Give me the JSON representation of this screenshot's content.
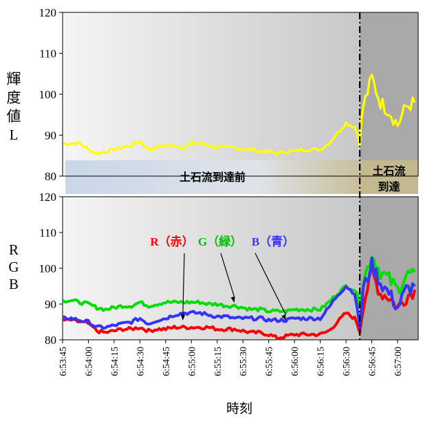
{
  "chart_data": [
    {
      "type": "line",
      "ylabel_chars": [
        "輝",
        "度",
        "値",
        "L"
      ],
      "ylim": [
        80,
        120
      ],
      "yticks": [
        "80",
        "90",
        "100",
        "110",
        "120"
      ],
      "series": [
        {
          "color": "#ffff00",
          "x": [
            "6:53:45",
            "6:53:50",
            "6:53:55",
            "6:54:00",
            "6:54:05",
            "6:54:10",
            "6:54:15",
            "6:54:20",
            "6:54:25",
            "6:54:30",
            "6:54:35",
            "6:54:40",
            "6:54:45",
            "6:54:50",
            "6:54:55",
            "6:55:00",
            "6:55:05",
            "6:55:10",
            "6:55:15",
            "6:55:20",
            "6:55:25",
            "6:55:30",
            "6:55:35",
            "6:55:40",
            "6:55:45",
            "6:55:50",
            "6:55:55",
            "6:56:00",
            "6:56:05",
            "6:56:10",
            "6:56:15",
            "6:56:20",
            "6:56:25",
            "6:56:30",
            "6:56:35",
            "6:56:38",
            "6:56:40",
            "6:56:45",
            "6:56:50",
            "6:56:55",
            "6:57:00",
            "6:57:05",
            "6:57:10"
          ],
          "values": [
            88,
            88,
            88,
            86.5,
            85.5,
            86,
            86.5,
            87,
            87.5,
            88.5,
            86.5,
            87,
            87.5,
            87.5,
            87,
            88,
            88,
            87.5,
            87,
            87,
            87,
            86.5,
            86.5,
            86,
            86,
            85.5,
            86,
            86,
            86.5,
            86.5,
            86.5,
            88,
            90.5,
            93,
            92,
            89,
            97,
            104,
            98,
            96,
            92.5,
            97,
            98
          ]
        }
      ],
      "phases": [
        {
          "label": "土石流到達前",
          "start": "6:53:45",
          "end": "6:56:38"
        },
        {
          "label_lines": [
            "土石流",
            "到達"
          ],
          "start": "6:56:38",
          "end": "6:57:12"
        }
      ]
    },
    {
      "type": "line",
      "ylabel_chars": [
        "R",
        "G",
        "B"
      ],
      "ylim": [
        80,
        120
      ],
      "yticks": [
        "80",
        "90",
        "100",
        "110",
        "120"
      ],
      "x": [
        "6:53:45",
        "6:53:50",
        "6:53:55",
        "6:54:00",
        "6:54:05",
        "6:54:10",
        "6:54:15",
        "6:54:20",
        "6:54:25",
        "6:54:30",
        "6:54:35",
        "6:54:40",
        "6:54:45",
        "6:54:50",
        "6:54:55",
        "6:55:00",
        "6:55:05",
        "6:55:10",
        "6:55:15",
        "6:55:20",
        "6:55:25",
        "6:55:30",
        "6:55:35",
        "6:55:40",
        "6:55:45",
        "6:55:50",
        "6:55:55",
        "6:56:00",
        "6:56:05",
        "6:56:10",
        "6:56:15",
        "6:56:20",
        "6:56:25",
        "6:56:30",
        "6:56:35",
        "6:56:38",
        "6:56:40",
        "6:56:45",
        "6:56:50",
        "6:56:55",
        "6:57:00",
        "6:57:05",
        "6:57:10"
      ],
      "series": [
        {
          "name": "R（赤）",
          "color": "#ff0000",
          "values": [
            85.5,
            85.5,
            85,
            84.5,
            82.5,
            82,
            82.5,
            83,
            83,
            83.5,
            82.5,
            83,
            83,
            83.5,
            83.5,
            83.5,
            83.5,
            83.5,
            83,
            83,
            83,
            82.5,
            82,
            82,
            81.5,
            80.5,
            81,
            81.5,
            81.5,
            81.5,
            81.5,
            82.5,
            85,
            87.5,
            86,
            83,
            90,
            99,
            93,
            92,
            89,
            92,
            94
          ]
        },
        {
          "name": "G（緑）",
          "color": "#00dd00",
          "values": [
            91,
            91,
            90.5,
            90,
            89,
            88.5,
            89,
            89.5,
            89.5,
            90.5,
            89.5,
            90,
            90.5,
            90.5,
            90.5,
            90.5,
            90.5,
            90,
            90,
            89.5,
            89.5,
            89,
            88.5,
            88.5,
            88,
            88,
            88,
            88.5,
            88.5,
            88.5,
            88.5,
            90.5,
            93,
            95,
            94,
            91,
            96,
            104,
            99,
            97,
            94,
            98,
            99
          ]
        },
        {
          "name": "B（青）",
          "color": "#3333ff",
          "values": [
            86,
            86,
            85.5,
            85,
            83.5,
            83.5,
            84,
            84.5,
            85,
            86,
            84.5,
            85.5,
            86,
            87,
            87.5,
            87.5,
            87.5,
            87,
            86.5,
            86.5,
            86,
            86,
            86,
            86,
            85.5,
            85.5,
            85.5,
            86,
            86,
            86,
            86,
            89,
            92.5,
            95,
            93,
            84,
            94,
            101,
            96,
            93,
            89,
            94,
            95
          ]
        }
      ],
      "annotations": [
        {
          "text": "R（赤）",
          "color": "#ff0000",
          "points_to": "6:54:55"
        },
        {
          "text": "G（緑）",
          "color": "#00bb00",
          "points_to": "6:55:25"
        },
        {
          "text": "B（青）",
          "color": "#3333ff",
          "points_to": "6:55:55"
        }
      ],
      "xticks": [
        "6:53:45",
        "6:54:00",
        "6:54:15",
        "6:54:30",
        "6:54:45",
        "6:55:00",
        "6:55:15",
        "6:55:30",
        "6:55:45",
        "6:56:00",
        "6:56:15",
        "6:56:30",
        "6:56:45",
        "6:57:00"
      ],
      "xlabel": "時刻",
      "event_time": "6:56:38"
    }
  ]
}
